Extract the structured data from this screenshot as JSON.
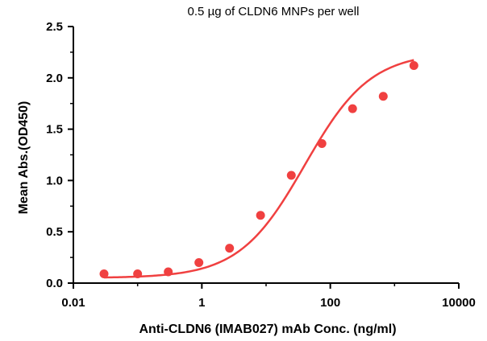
{
  "chart_data": {
    "type": "scatter",
    "title": "0.5 µg of CLDN6 MNPs per well",
    "xlabel": "Anti-CLDN6 (IMAB027) mAb Conc. (ng/ml)",
    "ylabel": "Mean Abs.(OD450)",
    "xscale": "log",
    "xlim": [
      0.01,
      10000
    ],
    "ylim": [
      0,
      2.5
    ],
    "xticks": [
      {
        "value": 0.01,
        "label": "0.01"
      },
      {
        "value": 1,
        "label": "1"
      },
      {
        "value": 100,
        "label": "100"
      },
      {
        "value": 10000,
        "label": "10000"
      }
    ],
    "yticks": [
      {
        "value": 0.0,
        "label": "0.0"
      },
      {
        "value": 0.5,
        "label": "0.5"
      },
      {
        "value": 1.0,
        "label": "1.0"
      },
      {
        "value": 1.5,
        "label": "1.5"
      },
      {
        "value": 2.0,
        "label": "2.0"
      },
      {
        "value": 2.5,
        "label": "2.5"
      }
    ],
    "grid": false,
    "color": "#f04040",
    "series": [
      {
        "x": [
          0.03,
          0.1,
          0.3,
          0.9,
          2.7,
          8.2,
          24.7,
          74,
          222,
          667,
          2000
        ],
        "y": [
          0.09,
          0.09,
          0.11,
          0.2,
          0.34,
          0.66,
          1.05,
          1.36,
          1.7,
          1.82,
          2.12
        ]
      }
    ],
    "fit_curve": {
      "type": "4PL",
      "bottom": 0.05,
      "top": 2.25,
      "ec50": 40,
      "hill": 0.85,
      "x_range": [
        0.03,
        2000
      ]
    }
  }
}
